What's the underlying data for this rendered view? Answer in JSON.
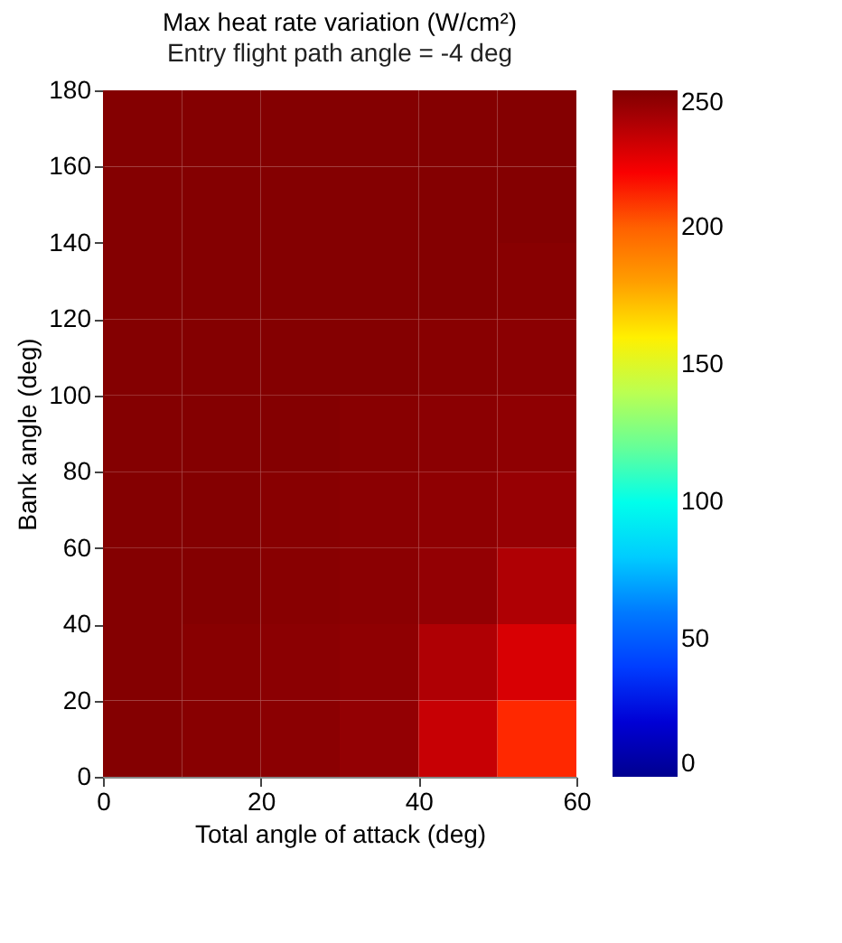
{
  "chart_data": {
    "type": "heatmap",
    "title": "Max heat rate variation (W/cm²)",
    "subtitle": "Entry flight path angle = -4 deg",
    "xlabel": "Total angle of attack (deg)",
    "ylabel": "Bank angle (deg)",
    "x": [
      5,
      15,
      25,
      35,
      45,
      55
    ],
    "y": [
      170,
      150,
      130,
      110,
      90,
      70,
      50,
      30,
      10
    ],
    "cells": [
      [
        249,
        249,
        249,
        249,
        249,
        249
      ],
      [
        249,
        249,
        249,
        249,
        249,
        249
      ],
      [
        249,
        249,
        249,
        249,
        249,
        248
      ],
      [
        249,
        249,
        249,
        249,
        248,
        247
      ],
      [
        249,
        249,
        249,
        248,
        247,
        246
      ],
      [
        249,
        249,
        248,
        247,
        246,
        244
      ],
      [
        249,
        249,
        248,
        247,
        245,
        238
      ],
      [
        249,
        248,
        247,
        246,
        238,
        228
      ],
      [
        249,
        248,
        247,
        245,
        232,
        215
      ]
    ],
    "xlim": [
      0,
      60
    ],
    "xticks": [
      0,
      20,
      40,
      60
    ],
    "ylim": [
      0,
      180
    ],
    "yticks": [
      0,
      20,
      40,
      60,
      80,
      100,
      120,
      140,
      160,
      180
    ],
    "clim": [
      0,
      250
    ],
    "cticks": [
      0,
      50,
      100,
      150,
      200,
      250
    ],
    "grid": false
  }
}
